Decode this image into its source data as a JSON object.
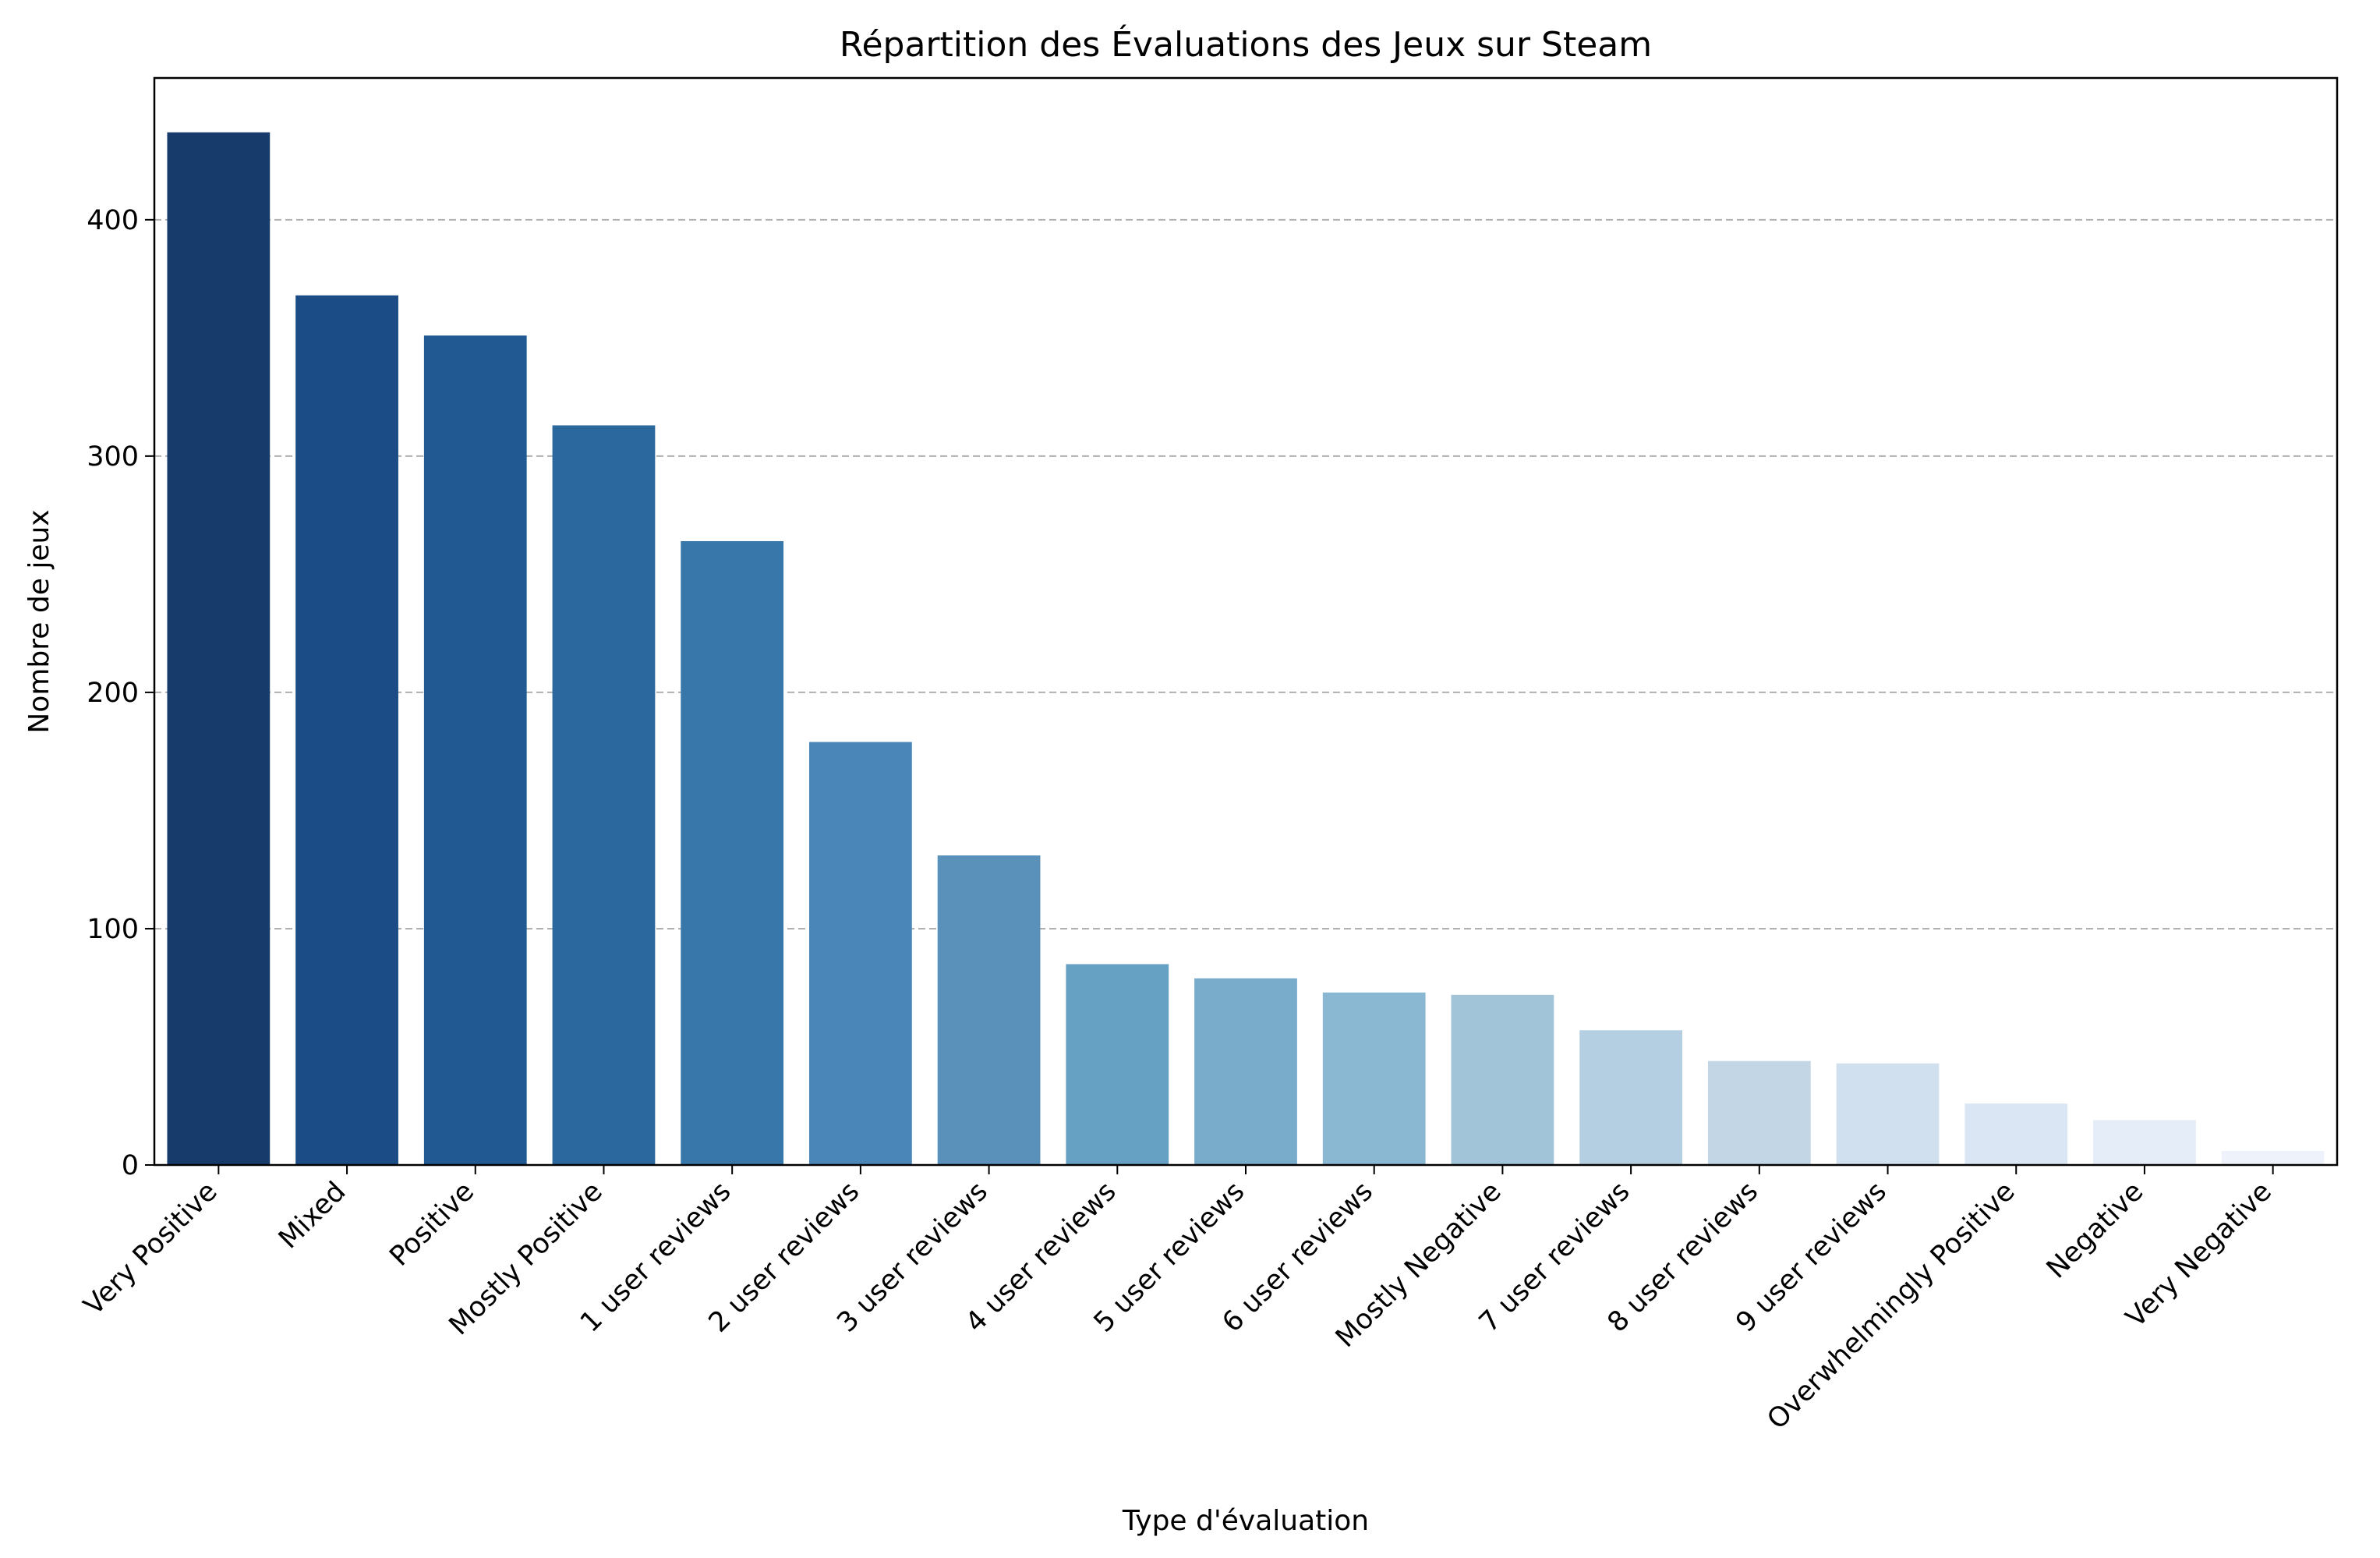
{
  "chart_data": {
    "type": "bar",
    "title": "Répartition des Évaluations des Jeux sur Steam",
    "xlabel": "Type d'évaluation",
    "ylabel": "Nombre de jeux",
    "categories": [
      "Very Positive",
      "Mixed",
      "Positive",
      "Mostly Positive",
      "1 user reviews",
      "2 user reviews",
      "3 user reviews",
      "4 user reviews",
      "5 user reviews",
      "6 user reviews",
      "Mostly Negative",
      "7 user reviews",
      "8 user reviews",
      "9 user reviews",
      "Overwhelmingly Positive",
      "Negative",
      "Very Negative"
    ],
    "values": [
      437,
      368,
      351,
      313,
      264,
      179,
      131,
      85,
      79,
      73,
      72,
      57,
      44,
      43,
      26,
      19,
      6
    ],
    "colors": [
      "#173b6b",
      "#1b4c86",
      "#215a93",
      "#2b689e",
      "#3877aa",
      "#4a86b8",
      "#5a91ba",
      "#66a0c3",
      "#79abcb",
      "#8ab8d2",
      "#a1c4d8",
      "#b4cee2",
      "#c3d6e6",
      "#d1e0ee",
      "#dbe6f4",
      "#e5edf8",
      "#eef3fb"
    ],
    "ylim": [
      0,
      460
    ],
    "yticks": [
      0,
      100,
      200,
      300,
      400
    ],
    "grid": "horizontal dashed"
  }
}
